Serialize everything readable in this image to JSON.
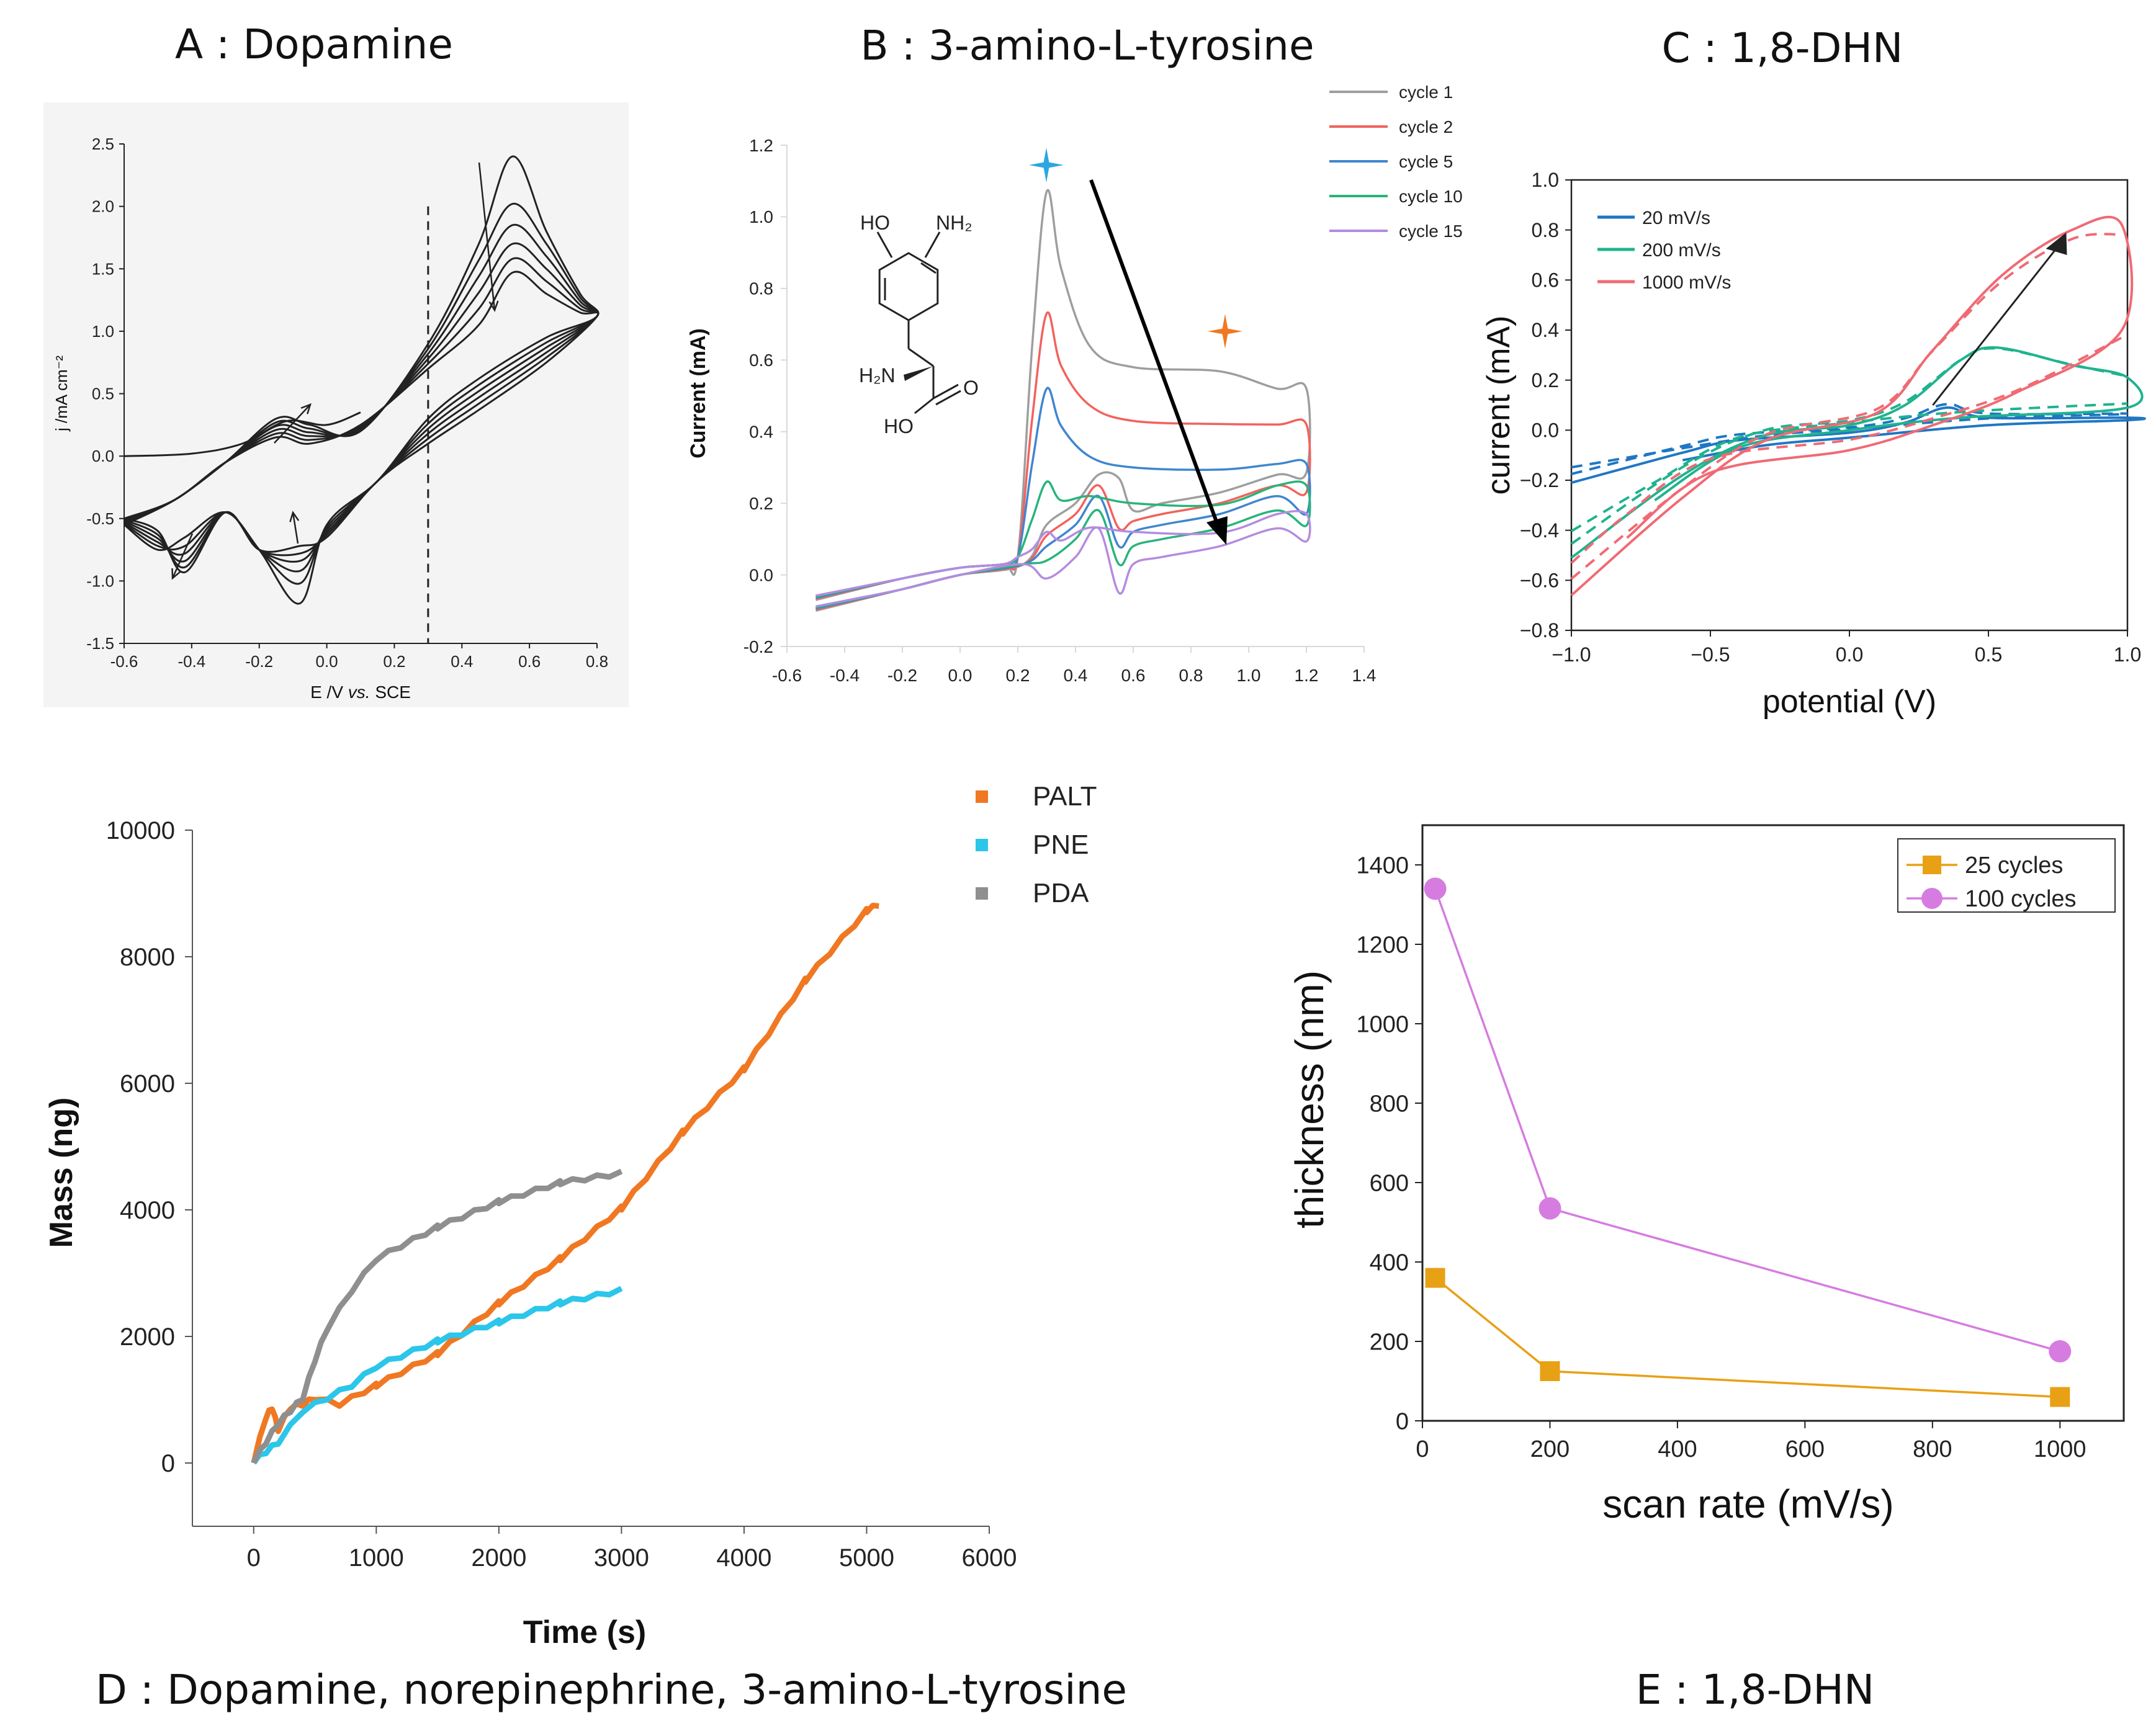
{
  "panels": {
    "A": {
      "caption": "A : Dopamine"
    },
    "B": {
      "caption": "B : 3-amino-L-tyrosine"
    },
    "C": {
      "caption": "C : 1,8-DHN"
    },
    "D": {
      "caption": "D : Dopamine, norepinephrine, 3-amino-L-tyrosine"
    },
    "E": {
      "caption": "E : 1,8-DHN"
    }
  },
  "chart_data": [
    {
      "id": "A",
      "type": "line",
      "title": "A : Dopamine",
      "xlabel_parts": [
        "E /V ",
        "vs.",
        " SCE"
      ],
      "ylabel": "j /mA cm⁻²",
      "xlim": [
        -0.6,
        0.8
      ],
      "ylim": [
        -1.5,
        2.5
      ],
      "xticks": [
        -0.6,
        -0.4,
        -0.2,
        0.0,
        0.2,
        0.4,
        0.6,
        0.8
      ],
      "xticklabels": [
        "-0.6",
        "-0.4",
        "-0.2",
        "0.0",
        "0.2",
        "0.4",
        "0.6",
        "0.8"
      ],
      "yticks": [
        -1.5,
        -1.0,
        -0.5,
        0.0,
        0.5,
        1.0,
        1.5,
        2.0,
        2.5
      ],
      "yticklabels": [
        "-1.5",
        "-1.0",
        "-0.5",
        "0.0",
        "0.5",
        "1.0",
        "1.5",
        "2.0",
        "2.5"
      ],
      "vline_x": 0.3,
      "color": "#222222",
      "cycles": [
        {
          "anodic_peak": 2.4,
          "cathodic_peak": -1.18,
          "small_anodic": 0.3,
          "small_cathodic": -0.45
        },
        {
          "anodic_peak": 2.02,
          "cathodic_peak": -1.02,
          "small_anodic": 0.27,
          "small_cathodic": -0.52
        },
        {
          "anodic_peak": 1.85,
          "cathodic_peak": -0.92,
          "small_anodic": 0.24,
          "small_cathodic": -0.58
        },
        {
          "anodic_peak": 1.7,
          "cathodic_peak": -0.84,
          "small_anodic": 0.21,
          "small_cathodic": -0.64
        },
        {
          "anodic_peak": 1.58,
          "cathodic_peak": -0.78,
          "small_anodic": 0.18,
          "small_cathodic": -0.69
        },
        {
          "anodic_peak": 1.47,
          "cathodic_peak": -0.72,
          "small_anodic": 0.15,
          "small_cathodic": -0.73
        }
      ]
    },
    {
      "id": "B",
      "type": "line",
      "title": "B : 3-amino-L-tyrosine",
      "ylabel": "Current (mA)",
      "xlim": [
        -0.6,
        1.4
      ],
      "ylim": [
        -0.2,
        1.2
      ],
      "xticks": [
        -0.6,
        -0.4,
        -0.2,
        0.0,
        0.2,
        0.4,
        0.6,
        0.8,
        1.0,
        1.2,
        1.4
      ],
      "xticklabels": [
        "-0.6",
        "-0.4",
        "-0.2",
        "0.0",
        "0.2",
        "0.4",
        "0.6",
        "0.8",
        "1.0",
        "1.2",
        "1.4"
      ],
      "yticks": [
        -0.2,
        0.0,
        0.2,
        0.4,
        0.6,
        0.8,
        1.0,
        1.2
      ],
      "yticklabels": [
        "-0.2",
        "0.0",
        "0.2",
        "0.4",
        "0.6",
        "0.8",
        "1.0",
        "1.2"
      ],
      "molecule_labels": {
        "ho": "HO",
        "nh2": "NH₂",
        "h2n": "H₂N",
        "o": "O",
        "ho2": "HO"
      },
      "series": [
        {
          "name": "cycle 1",
          "color": "#9e9e9e",
          "peak": 1.07,
          "plateau": 0.58,
          "end_high": 0.52,
          "return_level": 0.2,
          "reduction_dip": 0.27
        },
        {
          "name": "cycle 2",
          "color": "#f2625c",
          "peak": 0.73,
          "plateau": 0.43,
          "end_high": 0.42,
          "return_level": 0.17,
          "reduction_dip": 0.13
        },
        {
          "name": "cycle 5",
          "color": "#3f86cf",
          "peak": 0.52,
          "plateau": 0.3,
          "end_high": 0.31,
          "return_level": 0.14,
          "reduction_dip": 0.08
        },
        {
          "name": "cycle 10",
          "color": "#27b47c",
          "peak": 0.26,
          "plateau": 0.2,
          "end_high": 0.25,
          "return_level": 0.1,
          "reduction_dip": 0.03
        },
        {
          "name": "cycle 15",
          "color": "#b48be0",
          "peak": 0.12,
          "plateau": 0.12,
          "end_high": 0.17,
          "return_level": 0.05,
          "reduction_dip": -0.05
        }
      ]
    },
    {
      "id": "C",
      "type": "line",
      "title": "C : 1,8-DHN",
      "xlabel": "potential (V)",
      "ylabel": "current (mA)",
      "xlim": [
        -1.0,
        1.0
      ],
      "ylim": [
        -0.8,
        1.0
      ],
      "xticks": [
        -1.0,
        -0.5,
        0.0,
        0.5,
        1.0
      ],
      "xticklabels": [
        "−1.0",
        "−0.5",
        "0.0",
        "0.5",
        "1.0"
      ],
      "yticks": [
        -0.8,
        -0.6,
        -0.4,
        -0.2,
        0.0,
        0.2,
        0.4,
        0.6,
        0.8,
        1.0
      ],
      "yticklabels": [
        "−0.8",
        "−0.6",
        "−0.4",
        "−0.2",
        "0.0",
        "0.2",
        "0.4",
        "0.6",
        "0.8",
        "1.0"
      ],
      "series": [
        {
          "name": "20 mV/s",
          "color": "#1f77c4",
          "top": [
            [
              -1.0,
              -0.21
            ],
            [
              -0.6,
              -0.09
            ],
            [
              -0.4,
              -0.04
            ],
            [
              0.0,
              -0.01
            ],
            [
              0.2,
              0.03
            ],
            [
              0.35,
              0.09
            ],
            [
              0.5,
              0.05
            ],
            [
              1.0,
              0.05
            ]
          ],
          "bottom": [
            [
              -1.0,
              -0.21
            ],
            [
              -0.6,
              -0.12
            ],
            [
              -0.3,
              -0.06
            ],
            [
              0.0,
              -0.03
            ],
            [
              0.5,
              0.02
            ],
            [
              1.0,
              0.04
            ]
          ]
        },
        {
          "name": "200 mV/s",
          "color": "#1fb38e",
          "top": [
            [
              -1.0,
              -0.51
            ],
            [
              -0.6,
              -0.18
            ],
            [
              -0.3,
              -0.02
            ],
            [
              0.0,
              0.02
            ],
            [
              0.2,
              0.1
            ],
            [
              0.4,
              0.28
            ],
            [
              0.53,
              0.33
            ],
            [
              0.8,
              0.26
            ],
            [
              1.0,
              0.21
            ]
          ],
          "bottom": [
            [
              -1.0,
              -0.51
            ],
            [
              -0.7,
              -0.28
            ],
            [
              -0.4,
              -0.07
            ],
            [
              0.0,
              0.0
            ],
            [
              0.4,
              0.05
            ],
            [
              1.0,
              0.09
            ]
          ]
        },
        {
          "name": "1000 mV/s",
          "color": "#f06a74",
          "top": [
            [
              -1.0,
              -0.66
            ],
            [
              -0.6,
              -0.27
            ],
            [
              -0.3,
              -0.04
            ],
            [
              0.1,
              0.07
            ],
            [
              0.3,
              0.32
            ],
            [
              0.55,
              0.62
            ],
            [
              0.8,
              0.8
            ],
            [
              0.98,
              0.82
            ]
          ],
          "bottom": [
            [
              -1.0,
              -0.66
            ],
            [
              -0.8,
              -0.43
            ],
            [
              -0.5,
              -0.17
            ],
            [
              0.0,
              -0.08
            ],
            [
              0.3,
              0.02
            ],
            [
              0.6,
              0.15
            ],
            [
              0.98,
              0.4
            ]
          ]
        }
      ]
    },
    {
      "id": "D",
      "type": "line",
      "title": "D : Dopamine, norepinephrine, 3-amino-L-tyrosine",
      "xlabel": "Time (s)",
      "ylabel": "Mass (ng)",
      "xlim": [
        -500,
        6000
      ],
      "ylim": [
        -1000,
        10000
      ],
      "xticks": [
        0,
        1000,
        2000,
        3000,
        4000,
        5000,
        6000
      ],
      "xticklabels": [
        "0",
        "1000",
        "2000",
        "3000",
        "4000",
        "5000",
        "6000"
      ],
      "yticks": [
        0,
        2000,
        4000,
        6000,
        8000,
        10000
      ],
      "yticklabels": [
        "0",
        "2000",
        "4000",
        "6000",
        "8000",
        "10000"
      ],
      "series": [
        {
          "name": "PALT",
          "color": "#f07822",
          "x": [
            0,
            100,
            150,
            200,
            300,
            400,
            500,
            700,
            1000,
            1500,
            2000,
            2500,
            3000,
            3500,
            4000,
            4500,
            5000,
            5100
          ],
          "y": [
            0,
            700,
            850,
            500,
            850,
            900,
            1000,
            900,
            1200,
            1700,
            2500,
            3200,
            4000,
            5200,
            6200,
            7600,
            8700,
            8800
          ]
        },
        {
          "name": "PNE",
          "color": "#2bc6ea",
          "x": [
            0,
            100,
            200,
            400,
            600,
            800,
            1000,
            1500,
            2000,
            2500,
            3000
          ],
          "y": [
            0,
            150,
            300,
            800,
            1000,
            1200,
            1500,
            1900,
            2200,
            2500,
            2700
          ]
        },
        {
          "name": "PDA",
          "color": "#8f8f8f",
          "x": [
            0,
            100,
            200,
            300,
            400,
            500,
            600,
            800,
            1000,
            1500,
            2000,
            2500,
            3000
          ],
          "y": [
            0,
            300,
            600,
            800,
            1000,
            1600,
            2100,
            2700,
            3200,
            3700,
            4100,
            4400,
            4550
          ]
        }
      ]
    },
    {
      "id": "E",
      "type": "line",
      "title": "E : 1,8-DHN",
      "xlabel": "scan rate (mV/s)",
      "ylabel": "thickness (nm)",
      "xlim": [
        0,
        1100
      ],
      "ylim": [
        0,
        1500
      ],
      "xticks": [
        0,
        200,
        400,
        600,
        800,
        1000
      ],
      "xticklabels": [
        "0",
        "200",
        "400",
        "600",
        "800",
        "1000"
      ],
      "yticks": [
        0,
        200,
        400,
        600,
        800,
        1000,
        1200,
        1400
      ],
      "yticklabels": [
        "0",
        "200",
        "400",
        "600",
        "800",
        "1000",
        "1200",
        "1400"
      ],
      "series": [
        {
          "name": "25 cycles",
          "color": "#e8a014",
          "marker": "square",
          "x": [
            20,
            200,
            1000
          ],
          "y": [
            360,
            125,
            60
          ]
        },
        {
          "name": "100 cycles",
          "color": "#d67ce0",
          "marker": "circle",
          "x": [
            20,
            200,
            1000
          ],
          "y": [
            1340,
            535,
            175
          ]
        }
      ]
    }
  ]
}
